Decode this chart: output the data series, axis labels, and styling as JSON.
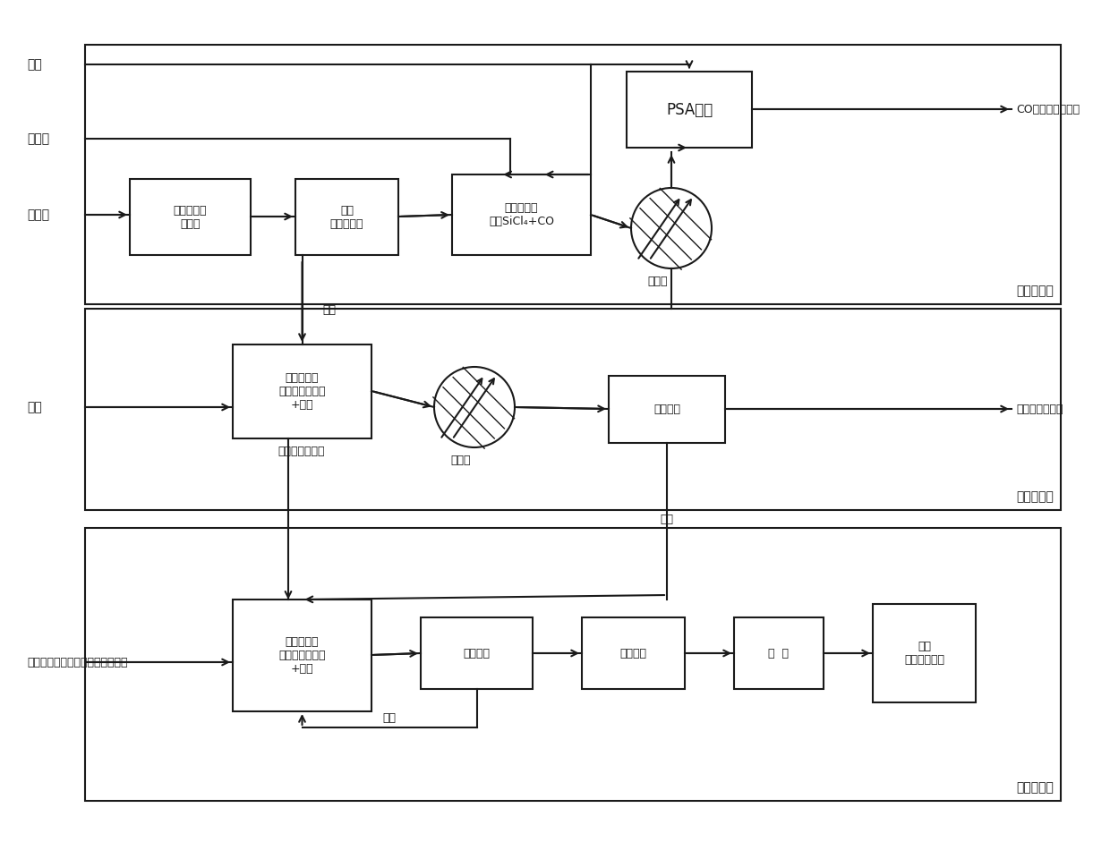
{
  "bg_color": "#ffffff",
  "lc": "#1a1a1a",
  "tc": "#1a1a1a",
  "input_qiqi": "氯气",
  "input_lvcaotan": "氯草炭",
  "input_daoke": "稻壳灰",
  "input_tongsu": "醉精",
  "input_cuihuaji": "催化剑（十六烷基三甲基渴化顸）",
  "box1_text": "稻壳灰酸洗\n及碧蛘",
  "box2_text": "过滤\n生成水玻璃",
  "box3_text": "第一反应器\n生成SiCl₄+CO",
  "psa_text": "PSA分离",
  "output_CO": "CO气体（副产品）",
  "lc_label1": "冷却水",
  "box4_text": "第二反应器\n生成正硅酸乙酱\n+盐酸",
  "box5_text": "过滤分离",
  "output_hcl": "盐酸（副产品）",
  "lc_label2": "冷却水",
  "label_shengzheng": "生成正硅酸乙酱",
  "label_yansuang": "盐酸",
  "box6_text": "第三反应器\n生成正硅酸乙酱\n+乙醇",
  "box7_text": "过滤分离",
  "box8_text": "喷雾干燥",
  "box9_text": "煮  烧",
  "box10_text": "产品\n介孔二氧化硅",
  "label_huisu": "回簿",
  "label_yansuang2": "盐酸",
  "region1_label": "第一反应区",
  "region2_label": "第二反应区",
  "region3_label": "第三反应区"
}
